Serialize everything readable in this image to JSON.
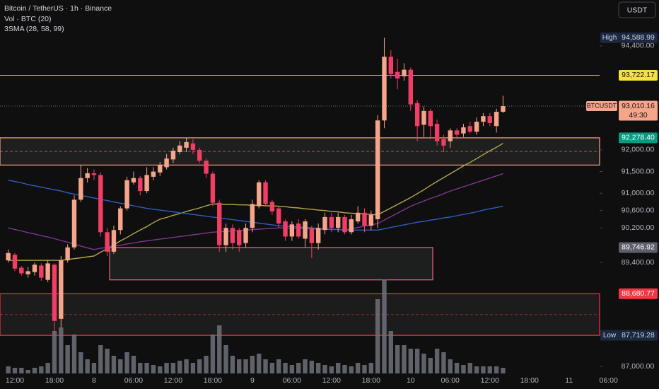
{
  "chart_data": {
    "type": "candlestick",
    "title": "Bitcoin / TetherUS · 1h · Binance",
    "volume_label": "Vol · BTC (20)",
    "ma_label": "3SMA (28, 58, 99)",
    "currency": "USDT",
    "categories": [
      null,
      "12:00",
      null,
      null,
      null,
      null,
      null,
      "18:00",
      null,
      null,
      null,
      null,
      null,
      "8",
      null,
      null,
      null,
      null,
      null,
      "06:00",
      null,
      null,
      null,
      null,
      null,
      "12:00",
      null,
      null,
      null,
      null,
      null,
      "18:00",
      null,
      null,
      null,
      null,
      null,
      "9",
      null,
      null,
      null,
      null,
      null,
      "06:00",
      null,
      null,
      null,
      null,
      null,
      "12:00",
      null,
      null,
      null,
      null,
      null,
      "18:00",
      null,
      null,
      null,
      null,
      null,
      "10",
      null,
      null,
      null,
      null,
      null,
      "06:00",
      null,
      null,
      null,
      null,
      null,
      "12:00",
      null,
      null,
      null,
      null,
      null,
      "18:00",
      null,
      null,
      null,
      null,
      null,
      "11",
      null,
      null,
      null,
      null,
      null,
      "06:00"
    ],
    "open": [
      89450,
      89580,
      89280,
      89130,
      89180,
      89330,
      89000,
      89350,
      88100,
      89450,
      89750,
      90850,
      91350,
      91460,
      91420,
      90100,
      89650,
      90150,
      90650,
      91250,
      91350,
      91050,
      91380,
      91480,
      91600,
      91780,
      91950,
      92050,
      92150,
      92000,
      91750,
      91450,
      90780,
      89800,
      90200,
      90150,
      89850,
      90200,
      90700,
      91250,
      90800,
      90650,
      90350,
      90000,
      90300,
      89950,
      90200,
      89850,
      90150,
      90450,
      90200,
      90450,
      90100,
      90350,
      90550,
      90250,
      90400,
      92680,
      94150,
      93800,
      93700,
      93850,
      93080,
      92580,
      92900,
      92600,
      92250,
      92200,
      92450,
      92380,
      92550,
      92420,
      92650,
      92780,
      92550,
      92880,
      null,
      null,
      null,
      null,
      null,
      null,
      null,
      null,
      null,
      null,
      null,
      null,
      null,
      null,
      null,
      null
    ],
    "high": [
      89700,
      89620,
      89320,
      89300,
      89400,
      89380,
      89450,
      89380,
      89550,
      89820,
      90950,
      91650,
      91580,
      91550,
      91480,
      90200,
      90250,
      90700,
      91380,
      91500,
      91400,
      91600,
      91600,
      91720,
      91900,
      92050,
      92200,
      92280,
      92250,
      92050,
      91800,
      91500,
      90850,
      90300,
      90280,
      90200,
      90300,
      90850,
      91300,
      91300,
      90850,
      90700,
      90400,
      90350,
      90400,
      90400,
      90250,
      90300,
      90550,
      90550,
      90550,
      90500,
      90500,
      90700,
      90650,
      90600,
      92800,
      94588.99,
      94300,
      94100,
      94000,
      93900,
      93150,
      93000,
      92950,
      92700,
      92350,
      92500,
      92500,
      92600,
      92650,
      92750,
      92850,
      92850,
      92950,
      93250,
      null,
      null,
      null,
      null,
      null,
      null,
      null,
      null,
      null,
      null,
      null,
      null,
      null,
      null,
      null,
      null
    ],
    "low": [
      89400,
      89200,
      89100,
      89050,
      89100,
      88980,
      88950,
      87719.28,
      87900,
      89400,
      89700,
      90800,
      91250,
      91300,
      90000,
      89550,
      89600,
      90050,
      90600,
      91200,
      90950,
      91000,
      91300,
      91400,
      91550,
      91700,
      91900,
      91950,
      91900,
      91700,
      91350,
      90700,
      89650,
      89650,
      89700,
      89650,
      89750,
      90100,
      90650,
      90700,
      90500,
      90200,
      89900,
      89900,
      89950,
      89750,
      89500,
      89700,
      90050,
      90100,
      90100,
      90050,
      90050,
      90300,
      90100,
      90150,
      90200,
      92500,
      93650,
      93400,
      93600,
      92900,
      92200,
      92300,
      92250,
      92100,
      91950,
      92050,
      92250,
      92300,
      92380,
      92350,
      92550,
      92550,
      92400,
      92850,
      null,
      null,
      null,
      null,
      null,
      null,
      null,
      null,
      null,
      null,
      null,
      null,
      null,
      null,
      null,
      null
    ],
    "close": [
      89620,
      89260,
      89150,
      89200,
      89350,
      89050,
      89380,
      88050,
      89450,
      89750,
      90850,
      91350,
      91460,
      91420,
      90100,
      89650,
      90150,
      90650,
      91300,
      91350,
      91050,
      91420,
      91500,
      91650,
      91800,
      91980,
      92100,
      92180,
      92000,
      91750,
      91450,
      90780,
      89800,
      90200,
      89850,
      89800,
      90200,
      90750,
      91250,
      90750,
      90580,
      90300,
      90000,
      90280,
      90000,
      90350,
      89850,
      90200,
      90450,
      90200,
      90450,
      90100,
      90400,
      90550,
      90250,
      90500,
      92680,
      94150,
      93750,
      93650,
      93850,
      93050,
      92550,
      92900,
      92550,
      92200,
      92100,
      92450,
      92350,
      92520,
      92420,
      92650,
      92780,
      92620,
      92880,
      93010.16,
      null,
      null,
      null,
      null,
      null,
      null,
      null,
      null,
      null,
      null,
      null,
      null,
      null,
      null,
      null,
      null
    ],
    "volume": [
      100,
      80,
      80,
      50,
      80,
      100,
      150,
      600,
      650,
      400,
      550,
      300,
      200,
      150,
      400,
      350,
      250,
      200,
      300,
      250,
      150,
      150,
      120,
      100,
      150,
      150,
      180,
      200,
      150,
      200,
      250,
      550,
      680,
      400,
      250,
      200,
      200,
      250,
      280,
      200,
      150,
      200,
      150,
      120,
      150,
      200,
      180,
      150,
      120,
      100,
      150,
      120,
      100,
      150,
      120,
      150,
      1050,
      1330,
      600,
      400,
      400,
      350,
      350,
      280,
      220,
      350,
      300,
      200,
      150,
      120,
      150,
      100,
      100,
      100,
      100,
      80,
      null,
      null,
      null,
      null,
      null,
      null,
      null,
      null,
      null,
      null,
      null,
      null,
      null,
      null,
      null,
      null
    ],
    "up_color": "#f7a58a",
    "down_color": "#f23d64",
    "volume_color": "#6e717b",
    "moving_averages": [
      {
        "color": "#b4a84a",
        "values": [
          89450,
          89450,
          89450,
          89450,
          89450,
          89450,
          89450,
          89450,
          89450,
          89470,
          89490,
          89510,
          89530,
          89550,
          89640,
          89720,
          89810,
          89900,
          89980,
          90070,
          90150,
          90230,
          90320,
          90400,
          90440,
          90490,
          90530,
          90580,
          90620,
          90660,
          90710,
          90750,
          90750,
          90740,
          90740,
          90730,
          90730,
          90720,
          90720,
          90710,
          90710,
          90700,
          90690,
          90670,
          90660,
          90640,
          90630,
          90610,
          90600,
          90580,
          90570,
          90550,
          90540,
          90530,
          90520,
          90510,
          90500,
          90580,
          90660,
          90740,
          90820,
          90900,
          90990,
          91080,
          91180,
          91270,
          91360,
          91450,
          91540,
          91630,
          91710,
          91800,
          91890,
          91980,
          92060,
          92150,
          null,
          null,
          null,
          null,
          null,
          null,
          null,
          null,
          null,
          null,
          null,
          null,
          null,
          null,
          null,
          null
        ]
      },
      {
        "color": "#7e3591",
        "values": [
          90200,
          90160,
          90130,
          90090,
          90060,
          90020,
          89990,
          89950,
          89910,
          89870,
          89830,
          89780,
          89740,
          89700,
          89730,
          89750,
          89780,
          89800,
          89830,
          89850,
          89880,
          89900,
          89920,
          89940,
          89960,
          89980,
          90000,
          90020,
          90040,
          90060,
          90080,
          90100,
          90110,
          90120,
          90130,
          90140,
          90150,
          90160,
          90170,
          90180,
          90190,
          90200,
          90200,
          90190,
          90190,
          90180,
          90180,
          90170,
          90170,
          90160,
          90160,
          90150,
          90180,
          90210,
          90240,
          90270,
          90300,
          90380,
          90460,
          90540,
          90620,
          90700,
          90760,
          90820,
          90880,
          90930,
          90990,
          91050,
          91100,
          91150,
          91200,
          91250,
          91300,
          91350,
          91400,
          91450,
          null,
          null,
          null,
          null,
          null,
          null,
          null,
          null,
          null,
          null,
          null,
          null,
          null,
          null,
          null,
          null
        ]
      },
      {
        "color": "#2f5dc0",
        "values": [
          91300,
          91270,
          91240,
          91200,
          91170,
          91140,
          91110,
          91080,
          91050,
          91010,
          90980,
          90950,
          90920,
          90890,
          90860,
          90830,
          90800,
          90770,
          90740,
          90710,
          90680,
          90650,
          90630,
          90610,
          90590,
          90570,
          90550,
          90530,
          90510,
          90490,
          90470,
          90450,
          90430,
          90410,
          90390,
          90370,
          90350,
          90330,
          90310,
          90290,
          90270,
          90250,
          90240,
          90230,
          90220,
          90210,
          90200,
          90190,
          90180,
          90170,
          90160,
          90150,
          90150,
          90150,
          90150,
          90150,
          90150,
          90180,
          90210,
          90240,
          90270,
          90300,
          90330,
          90350,
          90380,
          90400,
          90430,
          90450,
          90480,
          90510,
          90540,
          90570,
          90610,
          90640,
          90670,
          90700,
          null,
          null,
          null,
          null,
          null,
          null,
          null,
          null,
          null,
          null,
          null,
          null,
          null,
          null,
          null,
          null
        ]
      }
    ],
    "ylim": [
      86840,
      95460
    ],
    "yticks": [
      {
        "value": 94400,
        "label": "94,400.00"
      },
      {
        "value": 92000,
        "label": "92,000.00"
      },
      {
        "value": 91500,
        "label": "91,500.00"
      },
      {
        "value": 91000,
        "label": "91,000.00"
      },
      {
        "value": 90600,
        "label": "90,600.00"
      },
      {
        "value": 90200,
        "label": "90,200.00"
      },
      {
        "value": 89400,
        "label": "89,400.00"
      },
      {
        "value": 87000,
        "label": "87,000.00"
      }
    ],
    "zones": [
      {
        "top": 92278.4,
        "bottom": 91650,
        "color": "#f7a58a",
        "fill": "#1f1f1f"
      },
      {
        "top": 89746.92,
        "bottom": 89000,
        "color": "#f2627f",
        "fill": "#1c1f1d"
      },
      {
        "top": 88680.77,
        "bottom": 87719.28,
        "color": "#f23645",
        "fill": "#1c1c1c"
      }
    ],
    "price_labels": [
      {
        "name": "High",
        "value": 94588.99,
        "label": "94,588.99",
        "color": "#1c2742",
        "text_color": "#d1d4dc"
      },
      {
        "value": 93722.17,
        "label": "93,722.17",
        "color": "#f5e33b",
        "text_color": "#131313",
        "line": "solid"
      },
      {
        "name": "BTCUSDT",
        "value": 93010.16,
        "label": "93,010.16",
        "countdown": "49:30",
        "color": "#f7a58a",
        "text_color": "#131313",
        "line": "dotted"
      },
      {
        "value": 92278.4,
        "label": "92,278.40",
        "color": "#089981",
        "text_color": "#ffffff"
      },
      {
        "value": 89746.92,
        "label": "89,746.92",
        "color": "#5d606b",
        "text_color": "#ffffff"
      },
      {
        "value": 88680.77,
        "label": "88,680.77",
        "color": "#f23645",
        "text_color": "#ffffff"
      },
      {
        "name": "Low",
        "value": 87719.28,
        "label": "87,719.28",
        "color": "#1c2742",
        "text_color": "#d1d4dc"
      }
    ]
  }
}
